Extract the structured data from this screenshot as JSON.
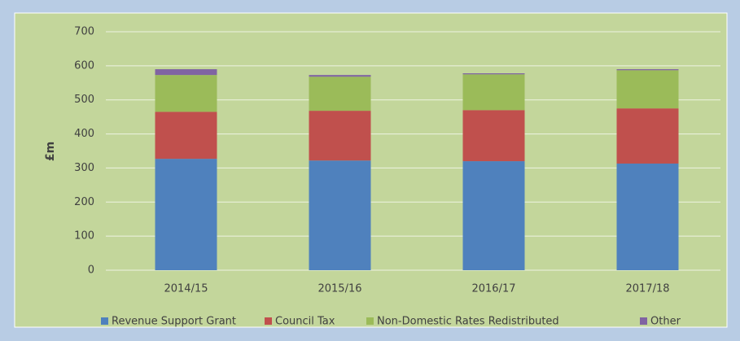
{
  "chart_data": {
    "type": "stacked_bar",
    "y_label": "£m",
    "categories": [
      "2014/15",
      "2015/16",
      "2016/17",
      "2017/18"
    ],
    "series": [
      {
        "name": "Revenue Support Grant",
        "color": "#4f81bd",
        "values": [
          327,
          322,
          320,
          313
        ]
      },
      {
        "name": "Council Tax",
        "color": "#c0504d",
        "values": [
          138,
          146,
          150,
          162
        ]
      },
      {
        "name": "Non-Domestic Rates Redistributed",
        "color": "#9bbb59",
        "values": [
          108,
          100,
          105,
          112
        ]
      },
      {
        "name": "Other",
        "color": "#8064a2",
        "values": [
          17,
          5,
          3,
          3
        ]
      }
    ],
    "ylim": [
      0,
      700
    ],
    "yticks": [
      0,
      100,
      200,
      300,
      400,
      500,
      600,
      700
    ],
    "grid": true,
    "legend": "bottom"
  }
}
